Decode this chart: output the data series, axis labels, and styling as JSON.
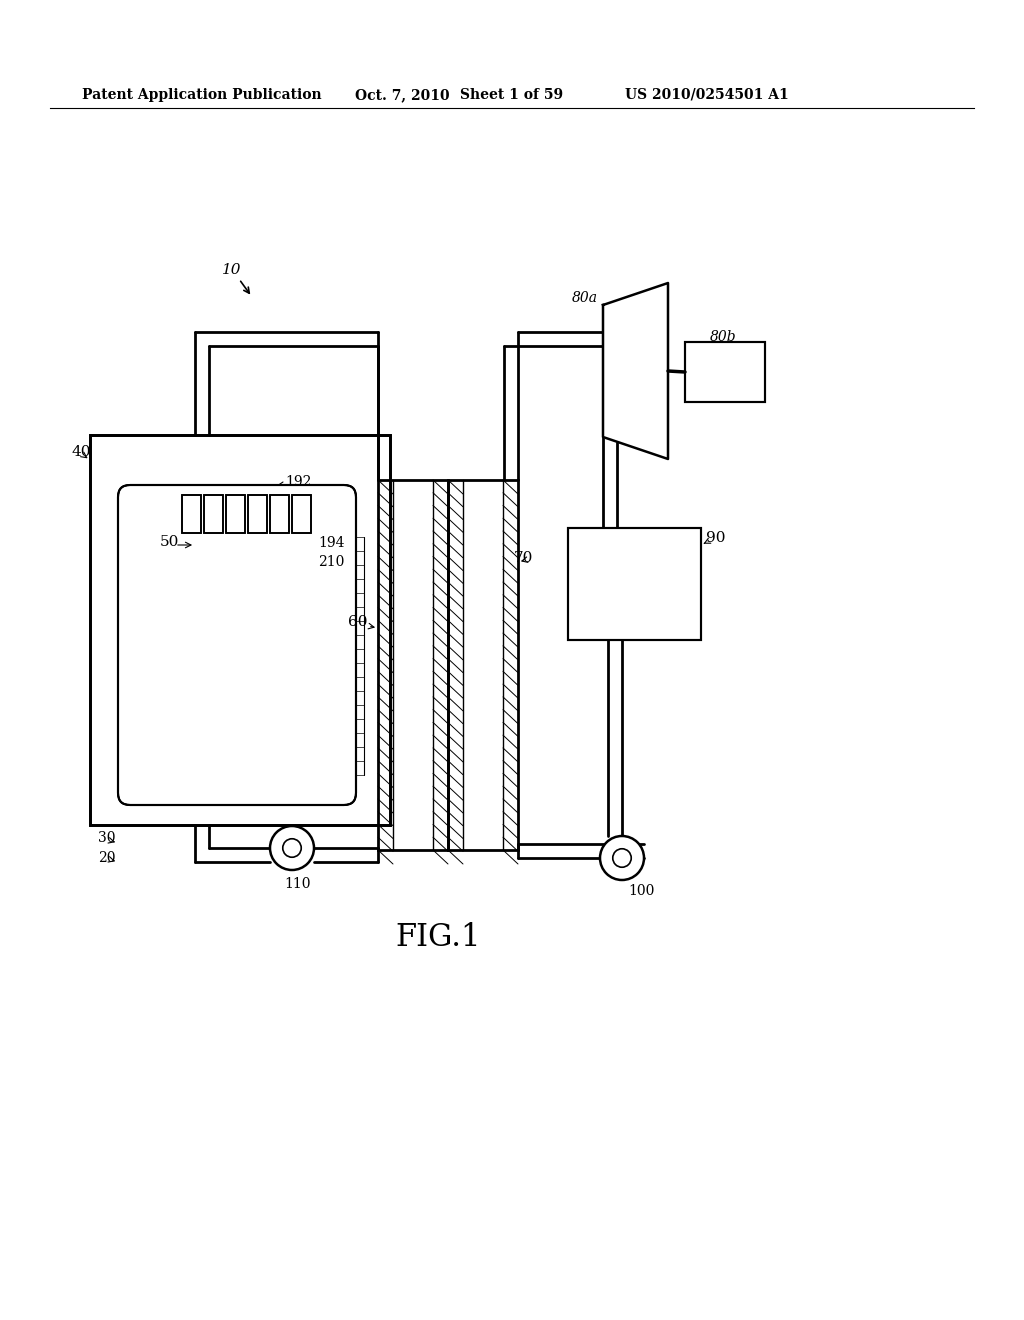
{
  "bg_color": "#ffffff",
  "line_color": "#000000",
  "header_text": "Patent Application Publication",
  "header_date": "Oct. 7, 2010",
  "header_sheet": "Sheet 1 of 59",
  "header_patent": "US 2010/0254501 A1",
  "fig_label": "FIG.1",
  "label_10": "10",
  "label_20": "20",
  "label_30": "30",
  "label_40": "40",
  "label_50": "50",
  "label_60": "60",
  "label_70": "70",
  "label_80a": "80a",
  "label_80b": "80b",
  "label_90": "90",
  "label_100": "100",
  "label_110": "110",
  "label_192": "192",
  "label_194": "194",
  "label_210": "210"
}
